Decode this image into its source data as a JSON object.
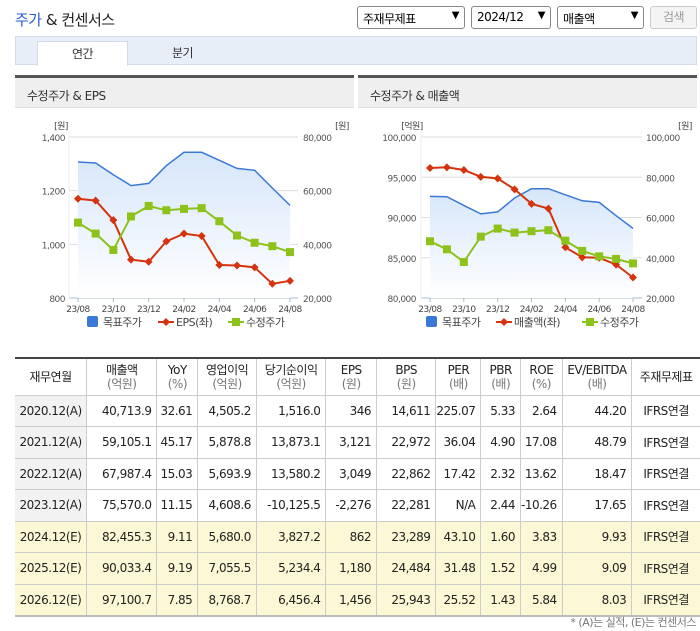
{
  "header": {
    "title_hl": "주가",
    "title_rest": " & 컨센서스",
    "select_type": "주재무제표",
    "select_period": "2024/12",
    "select_metric": "매출액",
    "search_label": "검색"
  },
  "tabs": [
    {
      "label": "연간",
      "active": true
    },
    {
      "label": "분기",
      "active": false
    }
  ],
  "chart_data": [
    {
      "type": "line",
      "title": "수정주가 & EPS",
      "left_unit": "[원]",
      "right_unit": "[원]",
      "categories": [
        "23/08",
        "23/09",
        "23/10",
        "23/11",
        "23/12",
        "24/01",
        "24/02",
        "24/03",
        "24/04",
        "24/05",
        "24/06",
        "24/07",
        "24/08"
      ],
      "x_tick_labels": [
        "23/08",
        "23/10",
        "23/12",
        "24/02",
        "24/04",
        "24/06",
        "24/08"
      ],
      "left_axis": {
        "range": [
          800,
          1400
        ],
        "ticks": [
          "800",
          "1,000",
          "1,200",
          "1,400"
        ]
      },
      "right_axis": {
        "range": [
          20000,
          80000
        ],
        "ticks": [
          "20,000",
          "40,000",
          "60,000",
          "80,000"
        ]
      },
      "grid": true,
      "legend": "bottom",
      "series": [
        {
          "name": "목표주가",
          "axis": "right",
          "style": "area",
          "color": "#3a78d8",
          "values": [
            70700,
            70300,
            65900,
            61900,
            62700,
            69300,
            74300,
            74300,
            71300,
            68300,
            67600,
            61000,
            54500
          ]
        },
        {
          "name": "EPS(좌)",
          "axis": "left",
          "style": "line-diamond",
          "color": "#d4330d",
          "values": [
            1170,
            1163,
            1090,
            943,
            935,
            1011,
            1040,
            1031,
            923,
            921,
            914,
            853,
            864
          ]
        },
        {
          "name": "수정주가",
          "axis": "right",
          "style": "line-square",
          "color": "#8cc21a",
          "values": [
            48100,
            44000,
            37900,
            50400,
            54300,
            52700,
            53200,
            53500,
            48600,
            43300,
            40600,
            39300,
            37100
          ]
        }
      ]
    },
    {
      "type": "line",
      "title": "수정주가 & 매출액",
      "left_unit": "[억원]",
      "right_unit": "[원]",
      "categories": [
        "23/08",
        "23/09",
        "23/10",
        "23/11",
        "23/12",
        "24/01",
        "24/02",
        "24/03",
        "24/04",
        "24/05",
        "24/06",
        "24/07",
        "24/08"
      ],
      "x_tick_labels": [
        "23/08",
        "23/10",
        "23/12",
        "24/02",
        "24/04",
        "24/06",
        "24/08"
      ],
      "left_axis": {
        "range": [
          80000,
          100000
        ],
        "ticks": [
          "80,000",
          "85,000",
          "90,000",
          "95,000",
          "100,000"
        ]
      },
      "right_axis": {
        "range": [
          20000,
          100000
        ],
        "ticks": [
          "20,000",
          "40,000",
          "60,000",
          "80,000",
          "100,000"
        ]
      },
      "grid": true,
      "legend": "bottom",
      "series": [
        {
          "name": "목표주가",
          "axis": "right",
          "style": "area",
          "color": "#3a78d8",
          "values": [
            70500,
            70350,
            66000,
            61800,
            62800,
            69700,
            74300,
            74300,
            71300,
            68300,
            67500,
            60900,
            54600
          ]
        },
        {
          "name": "매출액(좌)",
          "axis": "left",
          "style": "line-diamond",
          "color": "#d4330d",
          "values": [
            96150,
            96230,
            95900,
            95050,
            94850,
            93500,
            91700,
            91100,
            86300,
            85050,
            85000,
            84150,
            82550
          ]
        },
        {
          "name": "수정주가",
          "axis": "right",
          "style": "line-square",
          "color": "#8cc21a",
          "values": [
            48200,
            44200,
            37900,
            50500,
            54500,
            52500,
            53200,
            53700,
            48500,
            43400,
            40700,
            39400,
            37200
          ]
        }
      ]
    }
  ],
  "table": {
    "headers": [
      [
        "재무연월",
        ""
      ],
      [
        "매출액",
        "(억원)"
      ],
      [
        "YoY",
        "(%)"
      ],
      [
        "영업이익",
        "(억원)"
      ],
      [
        "당기순이익",
        "(억원)"
      ],
      [
        "EPS",
        "(원)"
      ],
      [
        "BPS",
        "(원)"
      ],
      [
        "PER",
        "(배)"
      ],
      [
        "PBR",
        "(배)"
      ],
      [
        "ROE",
        "(%)"
      ],
      [
        "EV/EBITDA",
        "(배)"
      ],
      [
        "주재무제표",
        ""
      ]
    ],
    "rows": [
      {
        "est": false,
        "cells": [
          "2020.12(A)",
          "40,713.9",
          "32.61",
          "4,505.2",
          "1,516.0",
          "346",
          "14,611",
          "225.07",
          "5.33",
          "2.64",
          "44.20",
          "IFRS연결"
        ]
      },
      {
        "est": false,
        "cells": [
          "2021.12(A)",
          "59,105.1",
          "45.17",
          "5,878.8",
          "13,873.1",
          "3,121",
          "22,972",
          "36.04",
          "4.90",
          "17.08",
          "48.79",
          "IFRS연결"
        ]
      },
      {
        "est": false,
        "cells": [
          "2022.12(A)",
          "67,987.4",
          "15.03",
          "5,693.9",
          "13,580.2",
          "3,049",
          "22,862",
          "17.42",
          "2.32",
          "13.62",
          "18.47",
          "IFRS연결"
        ]
      },
      {
        "est": false,
        "cells": [
          "2023.12(A)",
          "75,570.0",
          "11.15",
          "4,608.6",
          "-10,125.5",
          "-2,276",
          "22,281",
          "N/A",
          "2.44",
          "-10.26",
          "17.65",
          "IFRS연결"
        ]
      },
      {
        "est": true,
        "cells": [
          "2024.12(E)",
          "82,455.3",
          "9.11",
          "5,680.0",
          "3,827.2",
          "862",
          "23,289",
          "43.10",
          "1.60",
          "3.83",
          "9.93",
          "IFRS연결"
        ]
      },
      {
        "est": true,
        "cells": [
          "2025.12(E)",
          "90,033.4",
          "9.19",
          "7,055.5",
          "5,234.4",
          "1,180",
          "24,484",
          "31.48",
          "1.52",
          "4.99",
          "9.09",
          "IFRS연결"
        ]
      },
      {
        "est": true,
        "cells": [
          "2026.12(E)",
          "97,100.7",
          "7.85",
          "8,768.7",
          "6,456.4",
          "1,456",
          "25,943",
          "25.52",
          "1.43",
          "5.84",
          "8.03",
          "IFRS연결"
        ]
      }
    ]
  },
  "footnote": "* (A)는 실적, (E)는 컨센서스"
}
